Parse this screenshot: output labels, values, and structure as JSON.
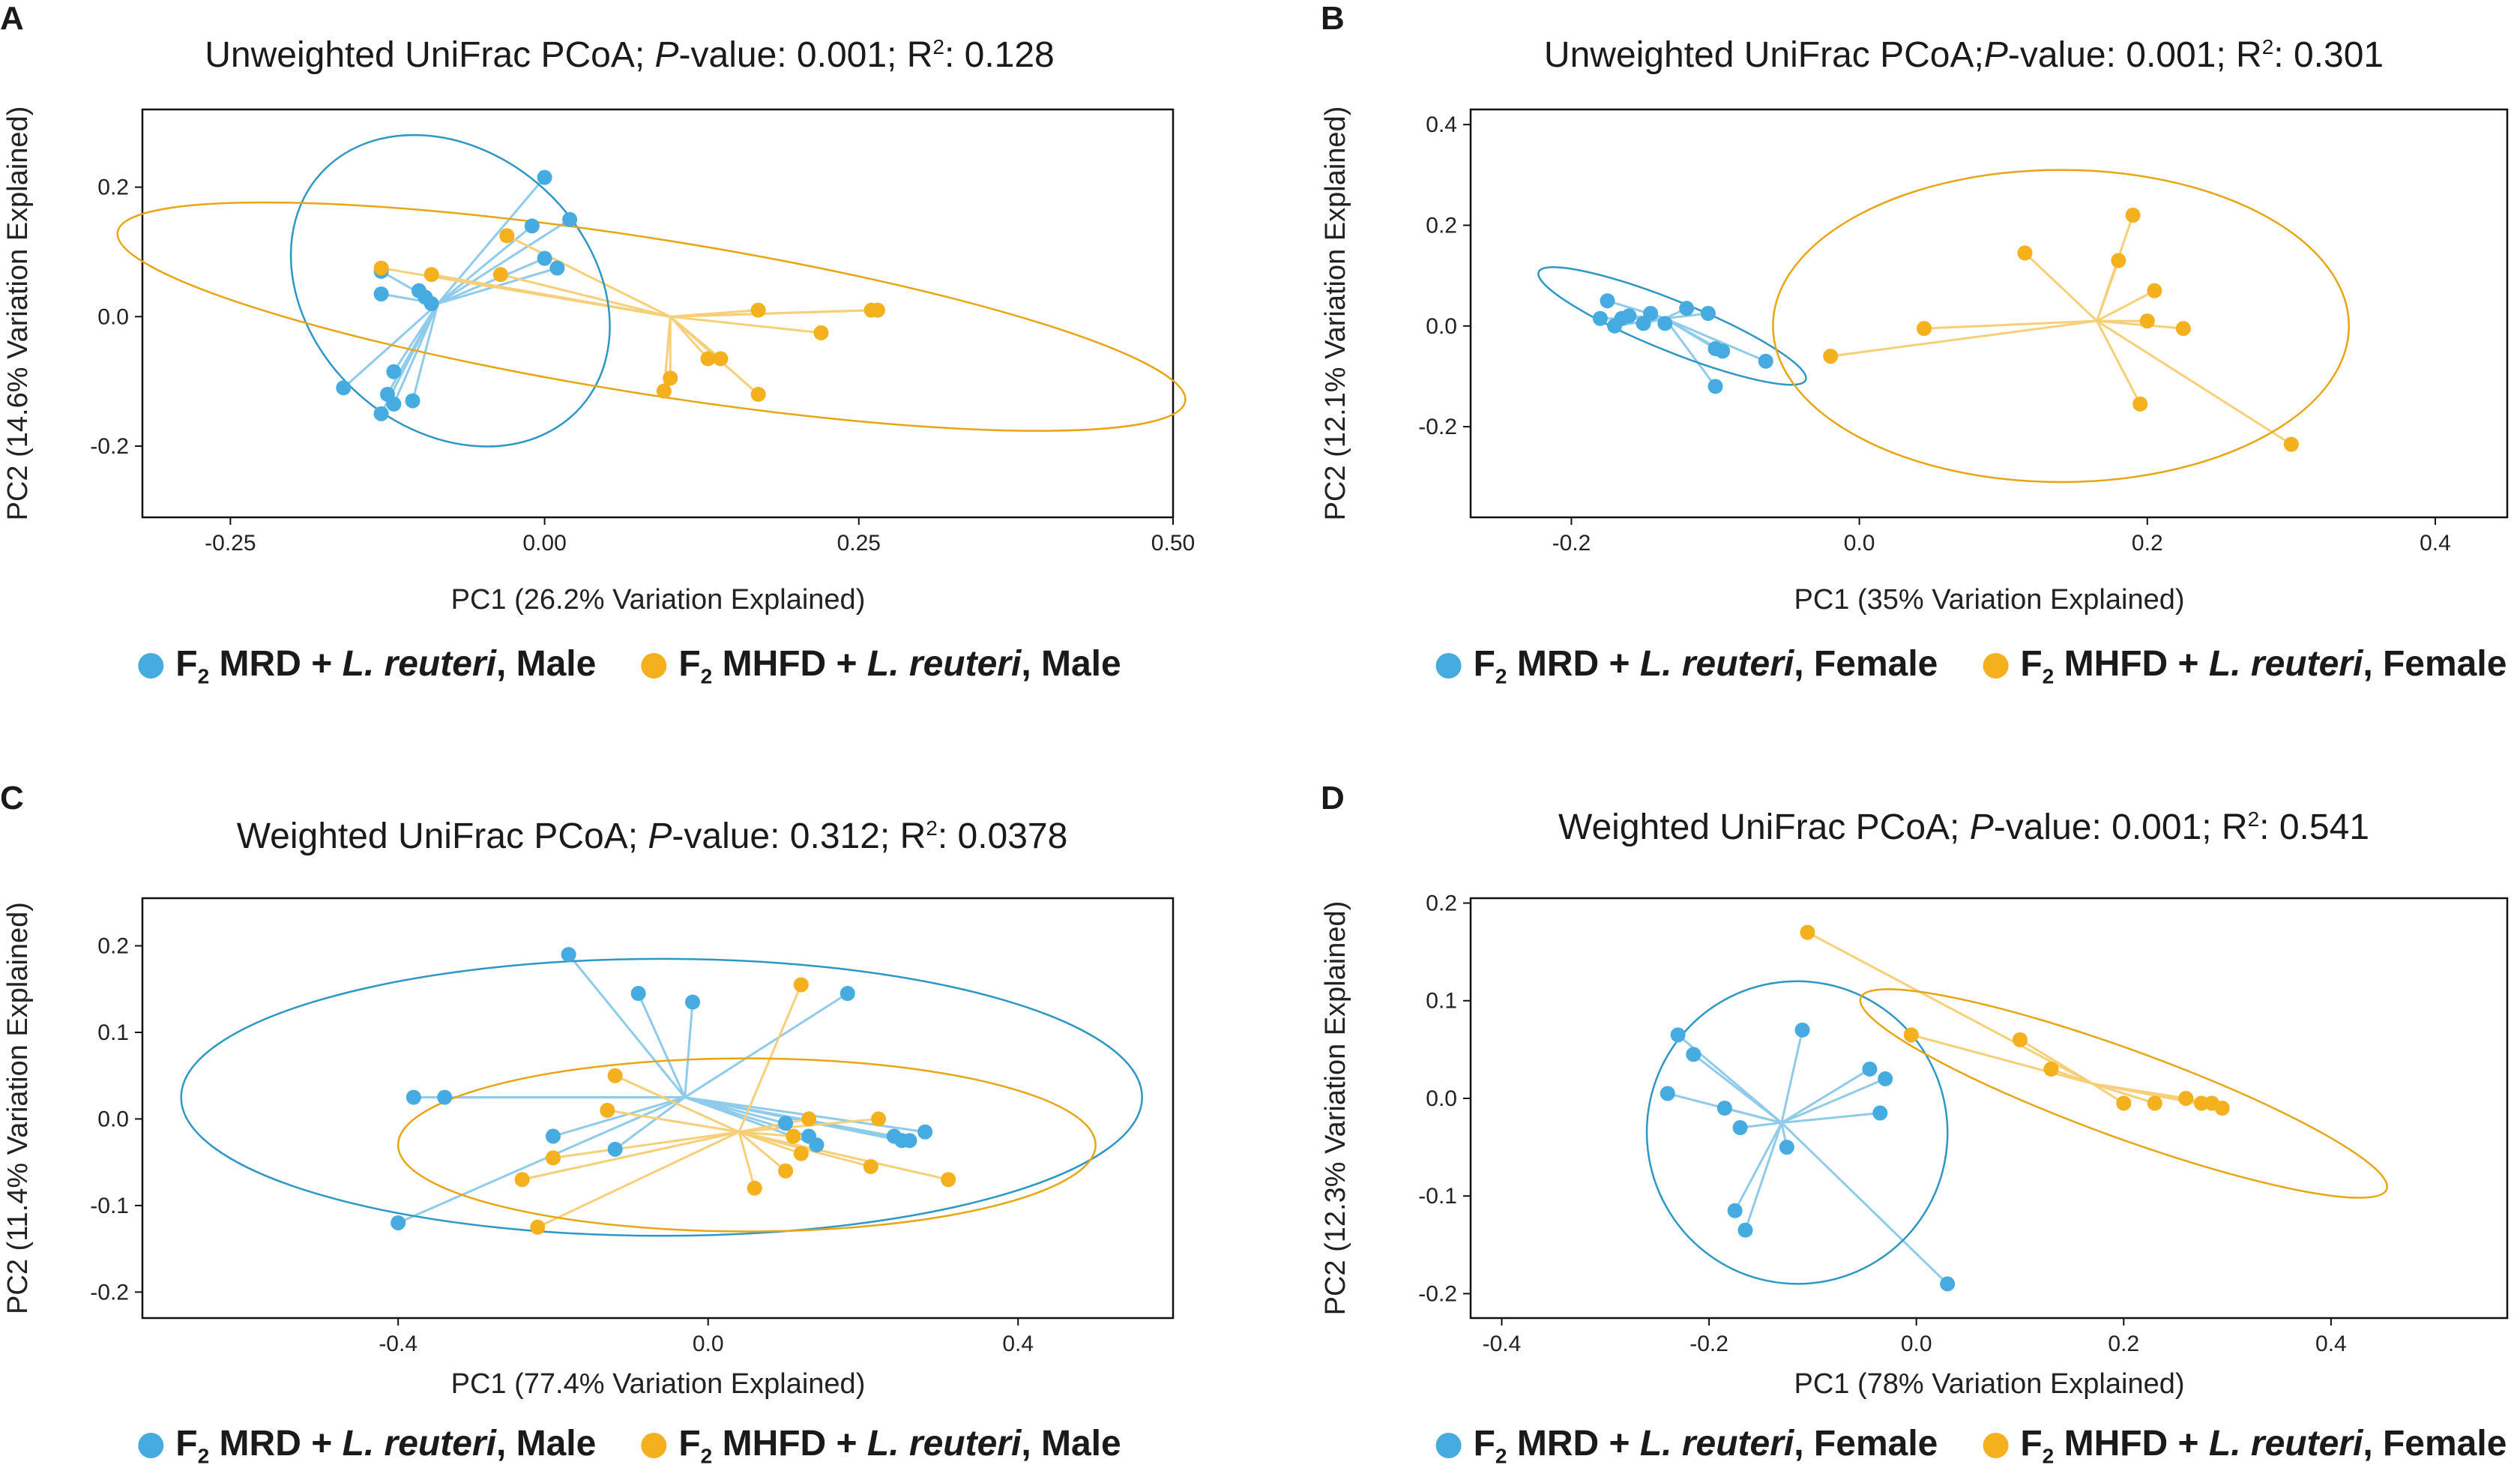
{
  "colors": {
    "mrd": "#45ABE0",
    "mhfd": "#F5B01E",
    "ellipse_mrd": "#2E97C6",
    "ellipse_mhfd": "#E8A514"
  },
  "legend": {
    "mrd_prefix": "F",
    "sub": "2",
    "mrd_mid": " MRD + ",
    "species": "L. reuteri",
    "mhfd_mid": " MHFD + ",
    "male": ", Male",
    "female": ", Female"
  },
  "panels": [
    {
      "letter": "A",
      "title_pre": "Unweighted UniFrac PCoA; ",
      "title_p": "P",
      "title_mid": "-value: 0.001; R",
      "title_sup": "2",
      "title_post": ": 0.128",
      "sex": "male"
    },
    {
      "letter": "B",
      "title_pre": "Unweighted UniFrac PCoA;",
      "title_p": "P",
      "title_mid": "-value: 0.001; R",
      "title_sup": "2",
      "title_post": ": 0.301",
      "sex": "female"
    },
    {
      "letter": "C",
      "title_pre": "Weighted UniFrac PCoA; ",
      "title_p": "P",
      "title_mid": "-value: 0.312; R",
      "title_sup": "2",
      "title_post": ": 0.0378",
      "sex": "male"
    },
    {
      "letter": "D",
      "title_pre": "Weighted UniFrac PCoA; ",
      "title_p": "P",
      "title_mid": "-value: 0.001; R",
      "title_sup": "2",
      "title_post": ": 0.541",
      "sex": "female"
    }
  ],
  "chart_data": [
    {
      "type": "scatter",
      "panel": "A",
      "title": "Unweighted UniFrac PCoA; P-value: 0.001; R2: 0.128",
      "xlabel": "PC1 (26.2% Variation Explained)",
      "ylabel": "PC2 (14.6% Variation Explained)",
      "xlim": [
        -0.32,
        0.5
      ],
      "ylim": [
        -0.31,
        0.32
      ],
      "xticks": [
        -0.25,
        0.0,
        0.25,
        0.5
      ],
      "xtick_labels": [
        "-0.25",
        "0.00",
        "0.25",
        "0.50"
      ],
      "yticks": [
        -0.2,
        0.0,
        0.2
      ],
      "ytick_labels": [
        "-0.2",
        "0.0",
        "0.2"
      ],
      "series": [
        {
          "name": "F2 MRD + L. reuteri, Male",
          "centroid": [
            -0.085,
            0.02
          ],
          "ellipse": {
            "center": [
              -0.075,
              0.04
            ],
            "rx": 0.11,
            "ry": 0.27,
            "angle": -48
          },
          "points": [
            [
              -0.16,
              -0.11
            ],
            [
              -0.13,
              -0.15
            ],
            [
              -0.125,
              -0.12
            ],
            [
              -0.12,
              -0.135
            ],
            [
              -0.105,
              -0.13
            ],
            [
              -0.12,
              -0.085
            ],
            [
              -0.13,
              0.07
            ],
            [
              -0.13,
              0.035
            ],
            [
              -0.1,
              0.04
            ],
            [
              -0.095,
              0.03
            ],
            [
              -0.09,
              0.02
            ],
            [
              0.0,
              0.215
            ],
            [
              -0.01,
              0.14
            ],
            [
              0.02,
              0.15
            ],
            [
              0.0,
              0.09
            ],
            [
              0.01,
              0.075
            ]
          ]
        },
        {
          "name": "F2 MHFD + L. reuteri, Male",
          "centroid": [
            0.1,
            0.0
          ],
          "ellipse": {
            "center": [
              0.085,
              0.0
            ],
            "rx": 0.43,
            "ry": 0.12,
            "angle": 9
          },
          "points": [
            [
              -0.13,
              0.075
            ],
            [
              -0.09,
              0.065
            ],
            [
              -0.03,
              0.125
            ],
            [
              -0.035,
              0.065
            ],
            [
              0.17,
              0.01
            ],
            [
              0.26,
              0.01
            ],
            [
              0.265,
              0.01
            ],
            [
              0.22,
              -0.025
            ],
            [
              0.13,
              -0.065
            ],
            [
              0.14,
              -0.065
            ],
            [
              0.1,
              -0.095
            ],
            [
              0.095,
              -0.115
            ],
            [
              0.17,
              -0.12
            ]
          ]
        }
      ]
    },
    {
      "type": "scatter",
      "panel": "B",
      "title": "Unweighted UniFrac PCoA;P-value: 0.001; R2: 0.301",
      "xlabel": "PC1 (35% Variation Explained)",
      "ylabel": "PC2 (12.1% Variation Explained)",
      "xlim": [
        -0.27,
        0.45
      ],
      "ylim": [
        -0.38,
        0.43
      ],
      "xticks": [
        -0.2,
        0.0,
        0.2,
        0.4
      ],
      "xtick_labels": [
        "-0.2",
        "0.0",
        "0.2",
        "0.4"
      ],
      "yticks": [
        -0.2,
        0.0,
        0.2,
        0.4
      ],
      "ytick_labels": [
        "-0.2",
        "0.0",
        "0.2",
        "0.4"
      ],
      "series": [
        {
          "name": "F2 MRD + L. reuteri, Female",
          "centroid": [
            -0.135,
            0.015
          ],
          "ellipse": {
            "center": [
              -0.13,
              0.0
            ],
            "rx": 0.1,
            "ry": 0.05,
            "angle": 22
          },
          "points": [
            [
              -0.175,
              0.05
            ],
            [
              -0.18,
              0.015
            ],
            [
              -0.17,
              0.0
            ],
            [
              -0.165,
              0.015
            ],
            [
              -0.16,
              0.02
            ],
            [
              -0.15,
              0.005
            ],
            [
              -0.145,
              0.025
            ],
            [
              -0.135,
              0.005
            ],
            [
              -0.12,
              0.035
            ],
            [
              -0.105,
              0.025
            ],
            [
              -0.1,
              -0.045
            ],
            [
              -0.095,
              -0.05
            ],
            [
              -0.065,
              -0.07
            ],
            [
              -0.1,
              -0.12
            ]
          ]
        },
        {
          "name": "F2 MHFD + L. reuteri, Female",
          "centroid": [
            0.165,
            0.01
          ],
          "ellipse": {
            "center": [
              0.14,
              0.0
            ],
            "rx": 0.2,
            "ry": 0.31,
            "angle": 0
          },
          "points": [
            [
              0.19,
              0.22
            ],
            [
              0.115,
              0.145
            ],
            [
              0.18,
              0.13
            ],
            [
              0.205,
              0.07
            ],
            [
              0.2,
              0.01
            ],
            [
              0.225,
              -0.005
            ],
            [
              0.045,
              -0.005
            ],
            [
              -0.02,
              -0.06
            ],
            [
              0.195,
              -0.155
            ],
            [
              0.3,
              -0.235
            ]
          ]
        }
      ]
    },
    {
      "type": "scatter",
      "panel": "C",
      "title": "Weighted UniFrac PCoA; P-value: 0.312; R2: 0.0378",
      "xlabel": "PC1 (77.4% Variation Explained)",
      "ylabel": "PC2 (11.4% Variation Explained)",
      "xlim": [
        -0.73,
        0.6
      ],
      "ylim": [
        -0.23,
        0.255
      ],
      "xticks": [
        -0.4,
        0.0,
        0.4
      ],
      "xtick_labels": [
        "-0.4",
        "0.0",
        "0.4"
      ],
      "yticks": [
        -0.2,
        -0.1,
        0.0,
        0.1,
        0.2
      ],
      "ytick_labels": [
        "-0.2",
        "-0.1",
        "0.0",
        "0.1",
        "0.2"
      ],
      "series": [
        {
          "name": "F2 MRD + L. reuteri, Male",
          "centroid": [
            -0.03,
            0.025
          ],
          "ellipse": {
            "center": [
              -0.06,
              0.025
            ],
            "rx": 0.62,
            "ry": 0.16,
            "angle": 0
          },
          "points": [
            [
              -0.18,
              0.19
            ],
            [
              -0.09,
              0.145
            ],
            [
              -0.02,
              0.135
            ],
            [
              0.18,
              0.145
            ],
            [
              -0.38,
              0.025
            ],
            [
              -0.34,
              0.025
            ],
            [
              -0.4,
              -0.12
            ],
            [
              -0.2,
              -0.02
            ],
            [
              -0.12,
              -0.035
            ],
            [
              0.1,
              -0.005
            ],
            [
              0.13,
              -0.02
            ],
            [
              0.14,
              -0.03
            ],
            [
              0.24,
              -0.02
            ],
            [
              0.25,
              -0.025
            ],
            [
              0.26,
              -0.025
            ],
            [
              0.28,
              -0.015
            ]
          ]
        },
        {
          "name": "F2 MHFD + L. reuteri, Male",
          "centroid": [
            0.04,
            -0.015
          ],
          "ellipse": {
            "center": [
              0.05,
              -0.03
            ],
            "rx": 0.45,
            "ry": 0.1,
            "angle": 0
          },
          "points": [
            [
              0.12,
              0.155
            ],
            [
              -0.12,
              0.05
            ],
            [
              -0.13,
              0.01
            ],
            [
              -0.2,
              -0.045
            ],
            [
              -0.24,
              -0.07
            ],
            [
              -0.22,
              -0.125
            ],
            [
              0.13,
              0.0
            ],
            [
              0.11,
              -0.02
            ],
            [
              0.12,
              -0.04
            ],
            [
              0.06,
              -0.08
            ],
            [
              0.1,
              -0.06
            ],
            [
              0.22,
              0.0
            ],
            [
              0.21,
              -0.055
            ],
            [
              0.31,
              -0.07
            ]
          ]
        }
      ]
    },
    {
      "type": "scatter",
      "panel": "D",
      "title": "Weighted UniFrac PCoA; P-value: 0.001; R2: 0.541",
      "xlabel": "PC1 (78% Variation Explained)",
      "ylabel": "PC2 (12.3% Variation Explained)",
      "xlim": [
        -0.43,
        0.57
      ],
      "ylim": [
        -0.225,
        0.205
      ],
      "xticks": [
        -0.4,
        -0.2,
        0.0,
        0.2,
        0.4
      ],
      "xtick_labels": [
        "-0.4",
        "-0.2",
        "0.0",
        "0.2",
        "0.4"
      ],
      "yticks": [
        -0.2,
        -0.1,
        0.0,
        0.1,
        0.2
      ],
      "ytick_labels": [
        "-0.2",
        "-0.1",
        "0.0",
        "0.1",
        "0.2"
      ],
      "series": [
        {
          "name": "F2 MRD + L. reuteri, Female",
          "centroid": [
            -0.13,
            -0.025
          ],
          "ellipse": {
            "center": [
              -0.115,
              -0.035
            ],
            "rx": 0.145,
            "ry": 0.155,
            "angle": -10
          },
          "points": [
            [
              -0.23,
              0.065
            ],
            [
              -0.215,
              0.045
            ],
            [
              -0.24,
              0.005
            ],
            [
              -0.11,
              0.07
            ],
            [
              -0.185,
              -0.01
            ],
            [
              -0.17,
              -0.03
            ],
            [
              -0.125,
              -0.05
            ],
            [
              -0.045,
              0.03
            ],
            [
              -0.03,
              0.02
            ],
            [
              -0.035,
              -0.015
            ],
            [
              -0.175,
              -0.115
            ],
            [
              -0.165,
              -0.135
            ],
            [
              0.03,
              -0.19
            ]
          ]
        },
        {
          "name": "F2 MHFD + L. reuteri, Female",
          "centroid": [
            0.17,
            0.015
          ],
          "ellipse": {
            "center": [
              0.2,
              0.005
            ],
            "rx": 0.27,
            "ry": 0.045,
            "angle": 20
          },
          "points": [
            [
              -0.105,
              0.17
            ],
            [
              -0.005,
              0.065
            ],
            [
              0.1,
              0.06
            ],
            [
              0.13,
              0.03
            ],
            [
              0.2,
              -0.005
            ],
            [
              0.23,
              -0.005
            ],
            [
              0.26,
              0.0
            ],
            [
              0.275,
              -0.005
            ],
            [
              0.285,
              -0.005
            ],
            [
              0.295,
              -0.01
            ]
          ]
        }
      ]
    }
  ]
}
